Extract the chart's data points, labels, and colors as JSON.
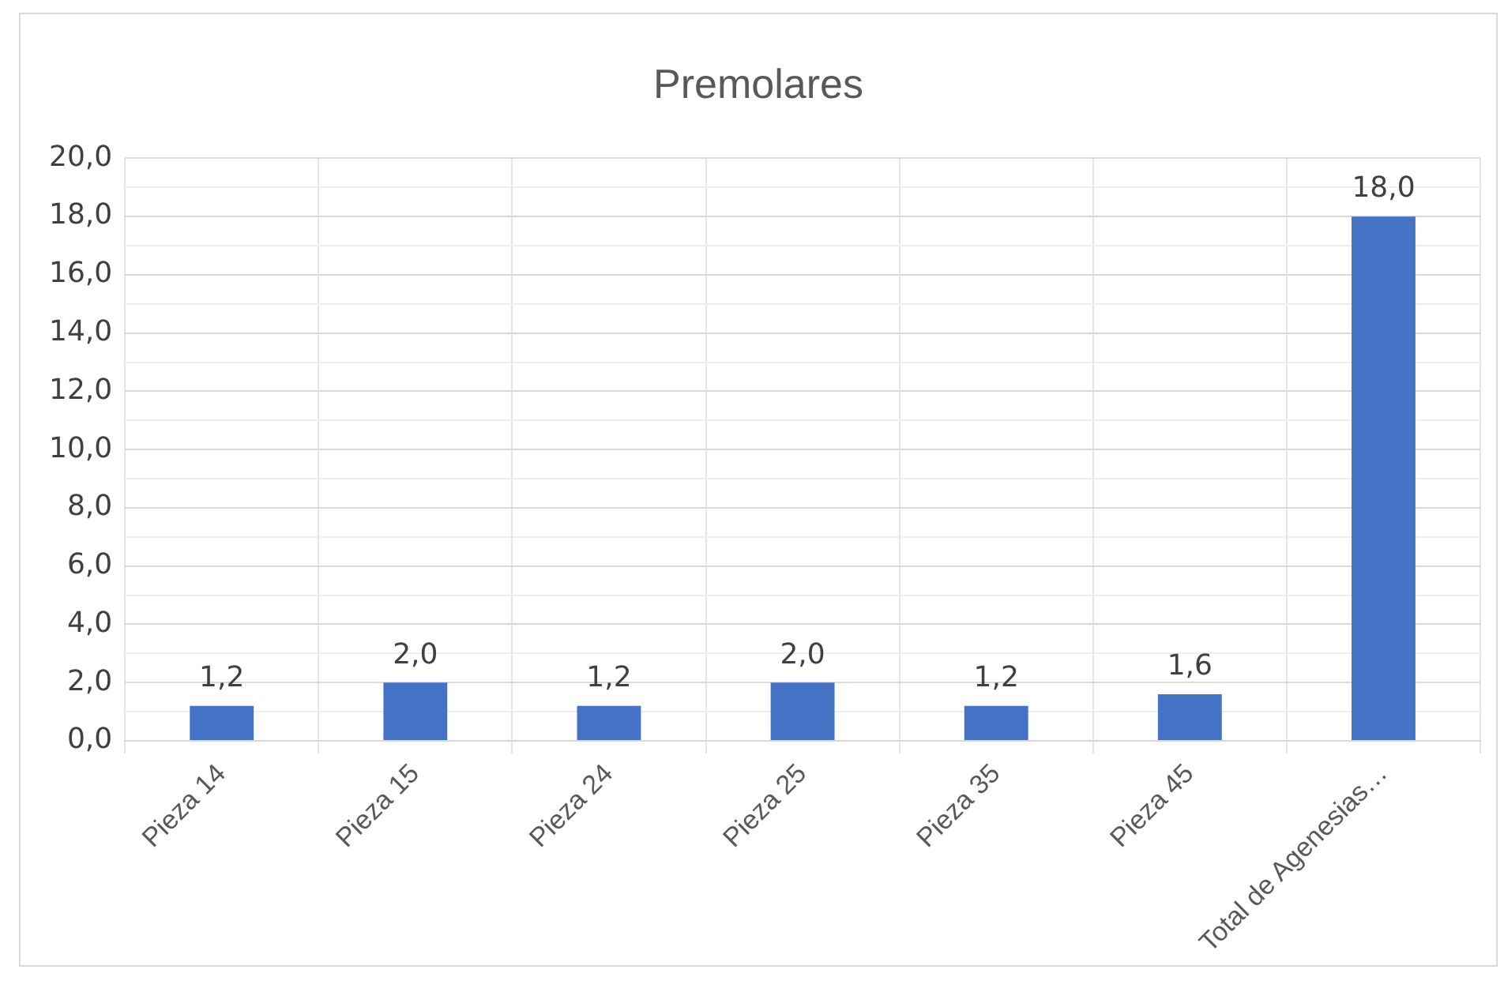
{
  "chart_data": {
    "type": "bar",
    "title": "Premolares",
    "categories": [
      "Pieza 14",
      "Pieza 15",
      "Pieza 24",
      "Pieza 25",
      "Pieza 35",
      "Pieza 45",
      "Total de Agenesias…"
    ],
    "values": [
      1.2,
      2.0,
      1.2,
      2.0,
      1.2,
      1.6,
      18.0
    ],
    "value_labels": [
      "1,2",
      "2,0",
      "1,2",
      "2,0",
      "1,2",
      "1,6",
      "18,0"
    ],
    "color": "#4472c4",
    "ylim": [
      0,
      20
    ],
    "yticks": [
      {
        "value": 0,
        "label": "0,0"
      },
      {
        "value": 1,
        "label": null
      },
      {
        "value": 2,
        "label": "2,0"
      },
      {
        "value": 3,
        "label": null
      },
      {
        "value": 4,
        "label": "4,0"
      },
      {
        "value": 5,
        "label": null
      },
      {
        "value": 6,
        "label": "6,0"
      },
      {
        "value": 7,
        "label": null
      },
      {
        "value": 8,
        "label": "8,0"
      },
      {
        "value": 9,
        "label": null
      },
      {
        "value": 10,
        "label": "10,0"
      },
      {
        "value": 11,
        "label": null
      },
      {
        "value": 12,
        "label": "12,0"
      },
      {
        "value": 13,
        "label": null
      },
      {
        "value": 14,
        "label": "14,0"
      },
      {
        "value": 15,
        "label": null
      },
      {
        "value": 16,
        "label": "16,0"
      },
      {
        "value": 17,
        "label": null
      },
      {
        "value": 18,
        "label": "18,0"
      },
      {
        "value": 19,
        "label": null
      },
      {
        "value": 20,
        "label": "20,0"
      }
    ],
    "grid": true,
    "legend": false
  }
}
